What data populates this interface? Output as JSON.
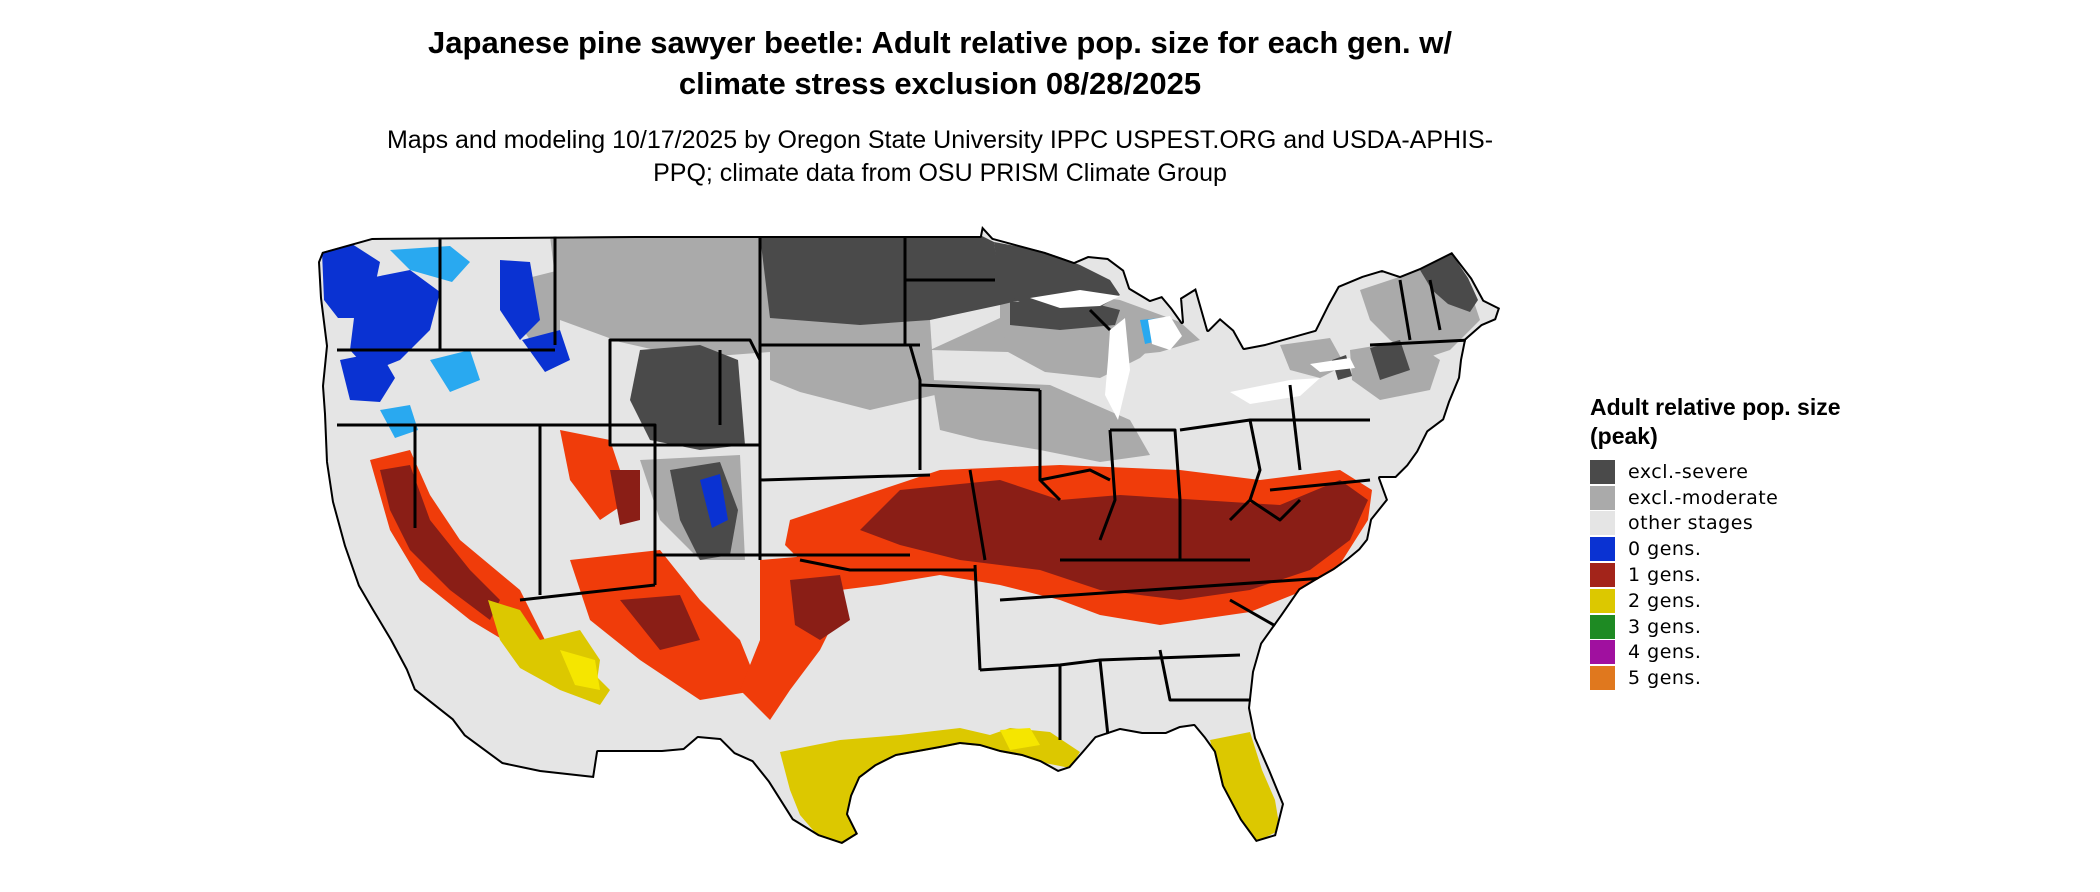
{
  "title": "Japanese pine sawyer beetle: Adult relative pop. size for each gen. w/ climate stress exclusion 08/28/2025",
  "subtitle": "Maps and modeling 10/17/2025 by Oregon State University IPPC USPEST.ORG and USDA-APHIS-PPQ; climate data from OSU PRISM Climate Group",
  "legend": {
    "title": "Adult relative pop. size (peak)",
    "items": [
      {
        "label": "excl.-severe",
        "color": "#4a4a4a"
      },
      {
        "label": "excl.-moderate",
        "color": "#aaaaaa"
      },
      {
        "label": "other stages",
        "color": "#e5e5e5"
      },
      {
        "label": "0 gens.",
        "color": "#0a32d2"
      },
      {
        "label": "1 gens.",
        "color": "#a3241a"
      },
      {
        "label": "2 gens.",
        "color": "#dcc800"
      },
      {
        "label": "3 gens.",
        "color": "#1e8a23"
      },
      {
        "label": "4 gens.",
        "color": "#a0109f"
      },
      {
        "label": "5 gens.",
        "color": "#e0781e"
      }
    ]
  },
  "map": {
    "region": "contiguous-us",
    "colors": {
      "severe": "#4a4a4a",
      "moderate": "#aaaaaa",
      "other": "#e5e5e5",
      "gen0": "#0a32d2",
      "gen0_light": "#29a9f0",
      "gen1": "#8a1e16",
      "gen1_edge": "#f03c0a",
      "gen2": "#dcc800",
      "gen2_light": "#f5e600",
      "border": "#000000"
    }
  }
}
